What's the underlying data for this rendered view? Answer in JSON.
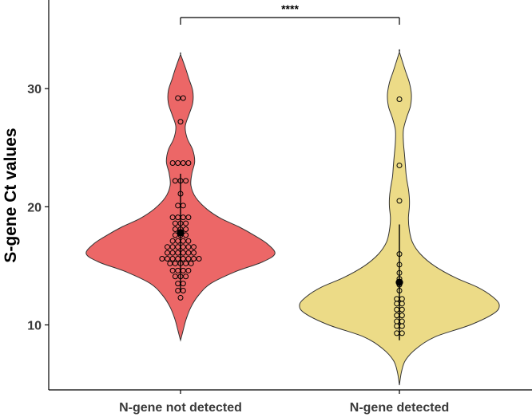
{
  "chart_data": {
    "type": "violin",
    "title": "",
    "xlabel": "",
    "ylabel": "S-gene Ct values",
    "ylim": [
      4.5,
      37.5
    ],
    "yticks": [
      10,
      20,
      30
    ],
    "categories": [
      "N-gene not detected",
      "N-gene detected"
    ],
    "colors": {
      "N-gene not detected": "#ec6767",
      "N-gene detected": "#ecdb87"
    },
    "significance": {
      "label": "****",
      "between": [
        "N-gene not detected",
        "N-gene detected"
      ]
    },
    "groups": [
      {
        "name": "N-gene not detected",
        "range": [
          8.7,
          32.9
        ],
        "density_profile": [
          [
            8.7,
            0.0
          ],
          [
            9.6,
            0.03
          ],
          [
            10.5,
            0.06
          ],
          [
            11.5,
            0.11
          ],
          [
            12.5,
            0.19
          ],
          [
            13.5,
            0.32
          ],
          [
            14.5,
            0.58
          ],
          [
            15.3,
            0.86
          ],
          [
            16.0,
            1.0
          ],
          [
            16.8,
            0.93
          ],
          [
            17.5,
            0.8
          ],
          [
            18.3,
            0.62
          ],
          [
            19.0,
            0.43
          ],
          [
            19.8,
            0.28
          ],
          [
            20.8,
            0.16
          ],
          [
            21.8,
            0.11
          ],
          [
            22.8,
            0.12
          ],
          [
            23.8,
            0.15
          ],
          [
            24.8,
            0.13
          ],
          [
            25.8,
            0.07
          ],
          [
            26.8,
            0.05
          ],
          [
            27.8,
            0.09
          ],
          [
            28.8,
            0.13
          ],
          [
            29.8,
            0.13
          ],
          [
            30.8,
            0.09
          ],
          [
            31.8,
            0.05
          ],
          [
            32.9,
            0.0
          ]
        ],
        "points": [
          12.3,
          12.9,
          12.9,
          13.5,
          13.5,
          14.1,
          14.1,
          14.1,
          14.6,
          14.6,
          14.6,
          14.6,
          15.2,
          15.2,
          15.2,
          15.2,
          15.2,
          15.6,
          15.6,
          15.6,
          15.6,
          15.6,
          15.6,
          15.6,
          15.6,
          16.1,
          16.1,
          16.1,
          16.1,
          16.1,
          16.1,
          16.6,
          16.6,
          16.6,
          16.6,
          16.6,
          16.6,
          17.1,
          17.1,
          17.1,
          17.1,
          17.6,
          17.6,
          17.6,
          18.1,
          18.1,
          18.1,
          18.6,
          18.6,
          18.6,
          19.1,
          19.1,
          19.1,
          19.1,
          20.1,
          20.1,
          21.1,
          22.2,
          22.2,
          22.2,
          23.7,
          23.7,
          23.7,
          23.7,
          27.2,
          29.2,
          29.2
        ],
        "mean": 17.8,
        "errorbar": [
          12.8,
          22.8
        ]
      },
      {
        "name": "N-gene detected",
        "range": [
          4.9,
          33.1
        ],
        "density_profile": [
          [
            4.9,
            0.0
          ],
          [
            6.0,
            0.02
          ],
          [
            7.0,
            0.06
          ],
          [
            8.0,
            0.17
          ],
          [
            9.0,
            0.36
          ],
          [
            10.0,
            0.71
          ],
          [
            11.0,
            0.95
          ],
          [
            11.7,
            1.0
          ],
          [
            12.4,
            0.93
          ],
          [
            13.2,
            0.78
          ],
          [
            14.0,
            0.56
          ],
          [
            15.0,
            0.35
          ],
          [
            16.0,
            0.21
          ],
          [
            17.0,
            0.13
          ],
          [
            18.0,
            0.1
          ],
          [
            19.0,
            0.09
          ],
          [
            20.0,
            0.1
          ],
          [
            20.7,
            0.1
          ],
          [
            21.5,
            0.09
          ],
          [
            22.5,
            0.07
          ],
          [
            23.5,
            0.06
          ],
          [
            24.5,
            0.05
          ],
          [
            25.5,
            0.04
          ],
          [
            26.5,
            0.04
          ],
          [
            27.5,
            0.07
          ],
          [
            28.5,
            0.11
          ],
          [
            29.5,
            0.12
          ],
          [
            30.5,
            0.1
          ],
          [
            31.5,
            0.06
          ],
          [
            33.1,
            0.0
          ]
        ],
        "points": [
          9.3,
          9.3,
          9.9,
          9.9,
          10.3,
          10.3,
          10.8,
          10.8,
          11.3,
          11.3,
          11.8,
          11.8,
          12.2,
          12.2,
          12.9,
          13.4,
          13.9,
          14.4,
          15.1,
          16.0,
          20.5,
          23.5,
          29.1
        ],
        "mean": 13.6,
        "errorbar": [
          8.7,
          18.5
        ]
      }
    ]
  }
}
